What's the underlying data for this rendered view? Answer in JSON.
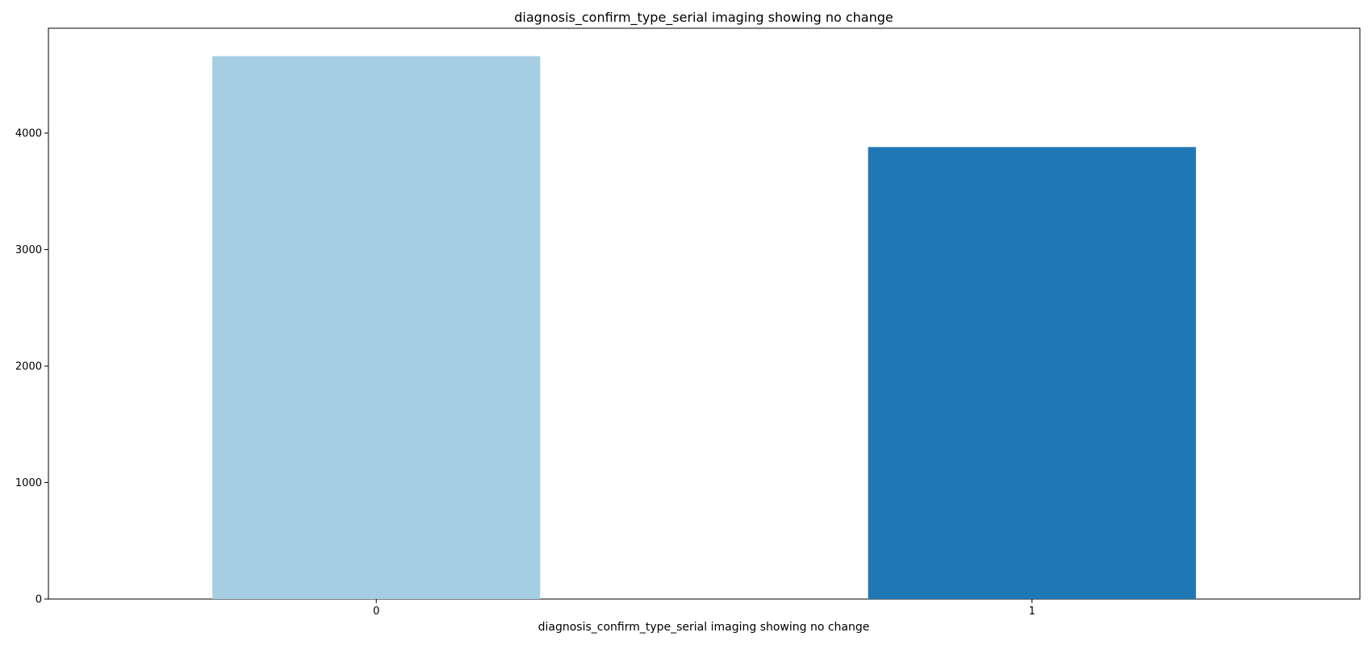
{
  "chart_data": {
    "type": "bar",
    "title": "diagnosis_confirm_type_serial imaging showing no change",
    "xlabel": "diagnosis_confirm_type_serial imaging showing no change",
    "ylabel": "",
    "categories": [
      "0",
      "1"
    ],
    "values": [
      4660,
      3880
    ],
    "bar_colors": [
      "#a6cee3",
      "#1f78b4"
    ],
    "ylim": [
      0,
      4900
    ],
    "yticks": [
      0,
      1000,
      2000,
      3000,
      4000
    ],
    "grid": false,
    "legend": "none"
  }
}
